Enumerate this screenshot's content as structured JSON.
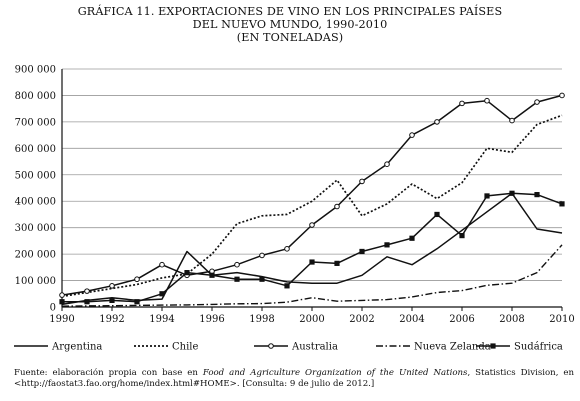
{
  "header": {
    "line1": "GRÁFICA 11. EXPORTACIONES DE VINO EN LOS PRINCIPALES PAÍSES",
    "line2": "DEL NUEVO MUNDO, 1990-2010",
    "line3": "(EN TONELADAS)"
  },
  "source": {
    "prefix": "Fuente: elaboración propia con base en ",
    "publication": "Food and Agriculture Organization of the United Nations",
    "suffix": ", Statistics Division, en <http://faostat3.fao.org/home/index.html#HOME>. [Consulta: 9 de julio de 2012.]"
  },
  "chart_data": {
    "type": "line",
    "x": [
      1990,
      1991,
      1992,
      1993,
      1994,
      1995,
      1996,
      1997,
      1998,
      1999,
      2000,
      2001,
      2002,
      2003,
      2004,
      2005,
      2006,
      2007,
      2008,
      2009,
      2010
    ],
    "xticks": [
      "1990",
      "1992",
      "1994",
      "1996",
      "1998",
      "2000",
      "2002",
      "2004",
      "2006",
      "2008",
      "2010"
    ],
    "ylim": [
      0,
      900000
    ],
    "yticks": [
      "0",
      "100 000",
      "200 000",
      "300 000",
      "400 000",
      "500 000",
      "600 000",
      "700 000",
      "800 000",
      "900 000"
    ],
    "grid": "horizontal",
    "legend_position": "bottom",
    "series": [
      {
        "name": "Argentina",
        "style": "solid",
        "marker": "none",
        "values": [
          10000,
          25000,
          35000,
          25000,
          30000,
          210000,
          120000,
          130000,
          115000,
          95000,
          90000,
          90000,
          120000,
          190000,
          160000,
          220000,
          290000,
          360000,
          430000,
          295000,
          280000
        ]
      },
      {
        "name": "Chile",
        "style": "dotted",
        "marker": "none",
        "values": [
          40000,
          55000,
          70000,
          85000,
          110000,
          125000,
          200000,
          315000,
          345000,
          350000,
          400000,
          480000,
          345000,
          390000,
          465000,
          410000,
          470000,
          600000,
          585000,
          690000,
          725000
        ]
      },
      {
        "name": "Australia",
        "style": "solid",
        "marker": "circle",
        "values": [
          45000,
          60000,
          80000,
          105000,
          160000,
          120000,
          135000,
          160000,
          195000,
          220000,
          310000,
          380000,
          475000,
          540000,
          650000,
          700000,
          770000,
          780000,
          705000,
          775000,
          800000
        ]
      },
      {
        "name": "Nueva Zelanda",
        "style": "dashdot",
        "marker": "none",
        "values": [
          3000,
          4000,
          5000,
          6000,
          7000,
          8000,
          10000,
          12000,
          13000,
          18000,
          35000,
          22000,
          25000,
          28000,
          38000,
          55000,
          62000,
          82000,
          90000,
          130000,
          235000
        ]
      },
      {
        "name": "Sudáfrica",
        "style": "solid",
        "marker": "square",
        "values": [
          20000,
          20000,
          25000,
          20000,
          50000,
          130000,
          120000,
          105000,
          105000,
          80000,
          170000,
          165000,
          210000,
          235000,
          260000,
          350000,
          270000,
          420000,
          430000,
          425000,
          390000
        ]
      }
    ]
  }
}
